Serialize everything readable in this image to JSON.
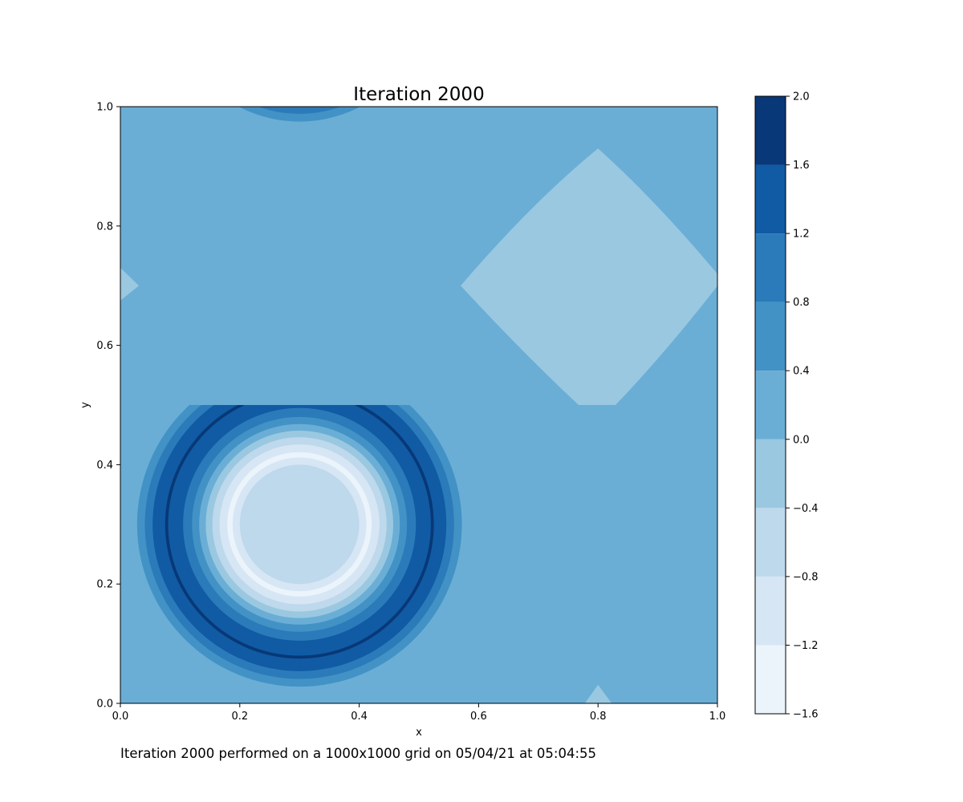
{
  "chart_data": {
    "type": "contour",
    "title": "Iteration 2000",
    "xlabel": "x",
    "ylabel": "y",
    "xlim": [
      0.0,
      1.0
    ],
    "ylim": [
      0.0,
      1.0
    ],
    "xticks": [
      "0.0",
      "0.2",
      "0.4",
      "0.6",
      "0.8",
      "1.0"
    ],
    "yticks": [
      "0.0",
      "0.2",
      "0.4",
      "0.6",
      "0.8",
      "1.0"
    ],
    "colormap": "Blues",
    "levels": [
      -1.6,
      -1.2,
      -0.8,
      -0.4,
      0.0,
      0.4,
      0.8,
      1.2,
      1.6,
      2.0
    ],
    "level_colors": [
      "#ebf3fb",
      "#d6e6f4",
      "#bed8ec",
      "#9ac8e0",
      "#6aaed6",
      "#4292c6",
      "#2b7bba",
      "#105ba4",
      "#083877"
    ],
    "colorbar_ticks": [
      "2.0",
      "1.6",
      "1.2",
      "0.8",
      "0.4",
      "0.0",
      "−0.4",
      "−0.8",
      "−1.2",
      "−1.6"
    ],
    "features": [
      {
        "kind": "ring",
        "center": [
          0.3,
          0.3
        ],
        "radius_range": [
          0.0,
          0.55
        ],
        "note": "concentric ring pattern, light center, dark ring near r=0.22"
      },
      {
        "kind": "ring",
        "center": [
          0.3,
          1.2
        ],
        "note": "partially visible ring pattern at top edge"
      },
      {
        "kind": "diamond",
        "center": [
          0.8,
          0.7
        ],
        "level": -0.2
      },
      {
        "kind": "diamond",
        "center": [
          -0.2,
          0.7
        ],
        "level": -0.2
      },
      {
        "kind": "diamond",
        "center": [
          0.8,
          -0.3
        ],
        "level": -0.2
      }
    ],
    "background_level": 0.2
  },
  "caption": "Iteration 2000 performed on a 1000x1000 grid on 05/04/21 at 05:04:55"
}
